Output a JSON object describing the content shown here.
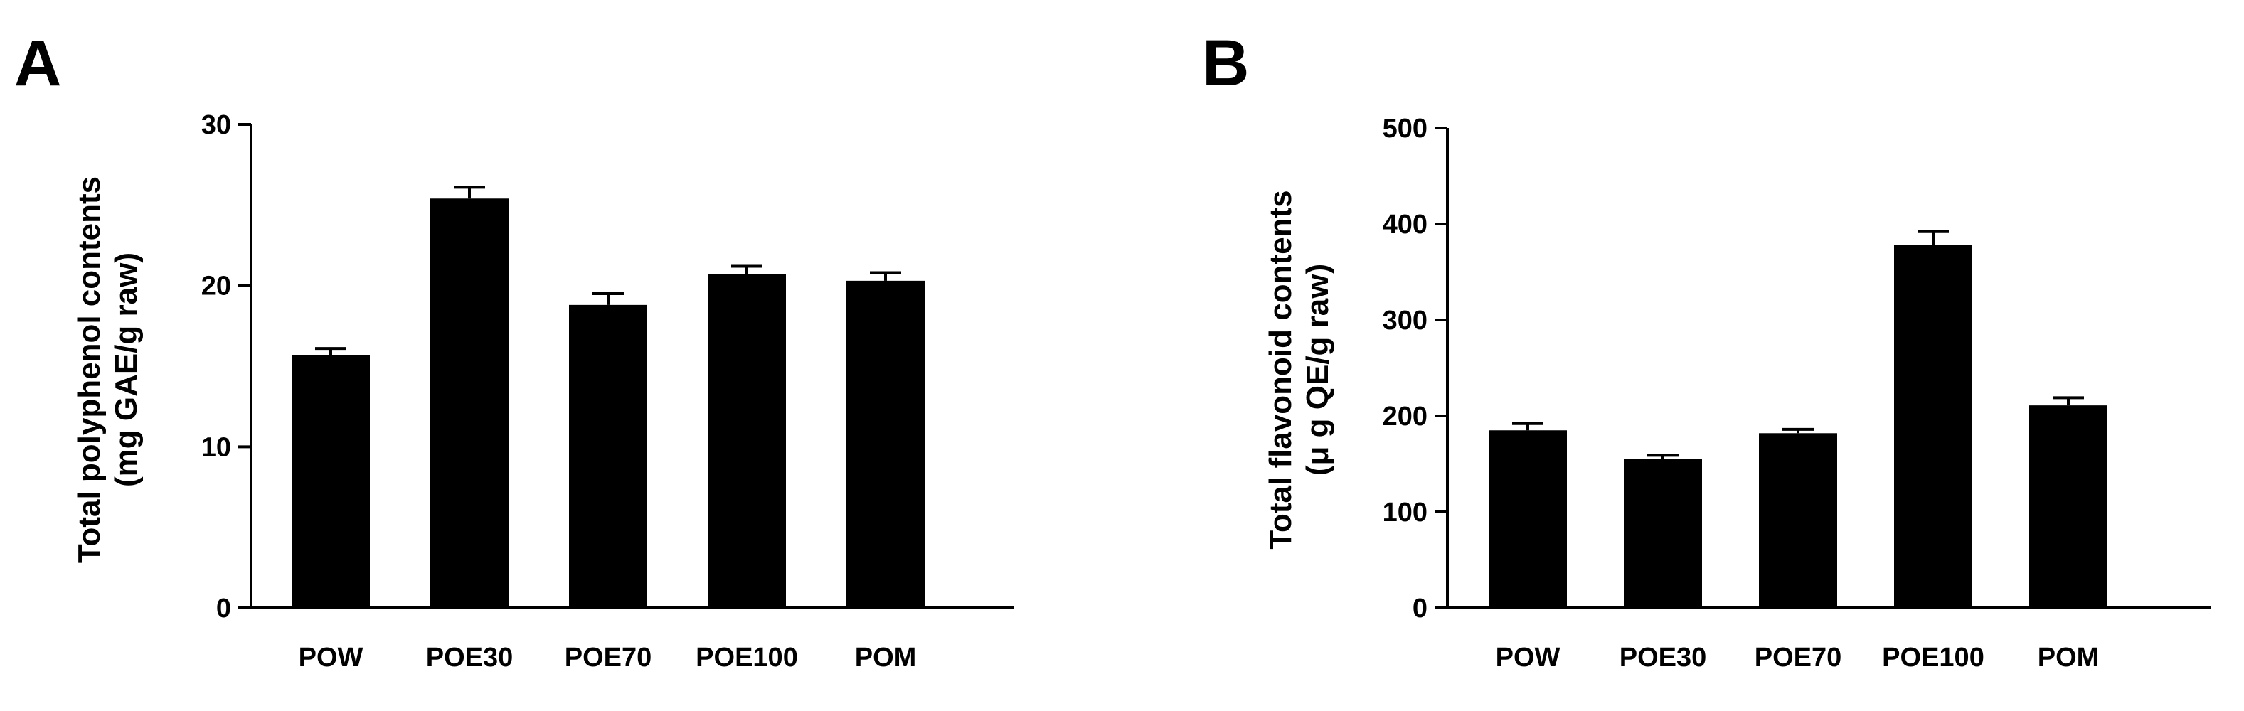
{
  "chart_data": [
    {
      "type": "bar",
      "panel_label": "A",
      "title": "",
      "xlabel": "",
      "ylabel_line1": "Total polyphenol contents",
      "ylabel_line2": "(mg GAE/g raw)",
      "categories": [
        "POW",
        "POE30",
        "POE70",
        "POE100",
        "POM"
      ],
      "values": [
        15.7,
        25.4,
        18.8,
        20.7,
        20.3
      ],
      "errors": [
        0.4,
        0.7,
        0.7,
        0.5,
        0.5
      ],
      "ylim": [
        0,
        30
      ],
      "yticks": [
        0,
        10,
        20,
        30
      ],
      "bar_color": "#000000",
      "grid": false
    },
    {
      "type": "bar",
      "panel_label": "B",
      "title": "",
      "xlabel": "",
      "ylabel_line1": "Total flavonoid contents",
      "ylabel_line2": "(μ g QE/g raw)",
      "categories": [
        "POW",
        "POE30",
        "POE70",
        "POE100",
        "POM"
      ],
      "values": [
        185,
        155,
        182,
        378,
        211
      ],
      "errors": [
        7,
        4,
        4,
        14,
        8
      ],
      "ylim": [
        0,
        500
      ],
      "yticks": [
        0,
        100,
        200,
        300,
        400,
        500
      ],
      "bar_color": "#000000",
      "grid": false
    }
  ]
}
